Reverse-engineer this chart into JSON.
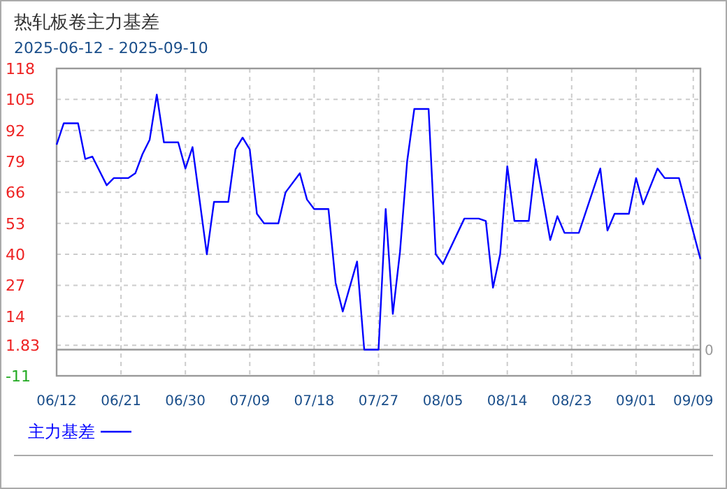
{
  "chart_data": {
    "type": "line",
    "title": "热轧板卷主力基差",
    "subtitle": "2025-06-12 - 2025-09-10",
    "x": [
      "2025-06-12",
      "2025-06-13",
      "2025-06-15",
      "2025-06-16",
      "2025-06-17",
      "2025-06-19",
      "2025-06-20",
      "2025-06-22",
      "2025-06-23",
      "2025-06-24",
      "2025-06-25",
      "2025-06-26",
      "2025-06-27",
      "2025-06-29",
      "2025-06-30",
      "2025-07-01",
      "2025-07-03",
      "2025-07-04",
      "2025-07-06",
      "2025-07-07",
      "2025-07-08",
      "2025-07-09",
      "2025-07-10",
      "2025-07-11",
      "2025-07-13",
      "2025-07-14",
      "2025-07-16",
      "2025-07-17",
      "2025-07-18",
      "2025-07-20",
      "2025-07-21",
      "2025-07-22",
      "2025-07-24",
      "2025-07-25",
      "2025-07-27",
      "2025-07-28",
      "2025-07-29",
      "2025-07-30",
      "2025-07-31",
      "2025-08-01",
      "2025-08-03",
      "2025-08-04",
      "2025-08-05",
      "2025-08-08",
      "2025-08-10",
      "2025-08-11",
      "2025-08-12",
      "2025-08-13",
      "2025-08-14",
      "2025-08-15",
      "2025-08-17",
      "2025-08-18",
      "2025-08-20",
      "2025-08-21",
      "2025-08-22",
      "2025-08-24",
      "2025-08-27",
      "2025-08-28",
      "2025-08-29",
      "2025-08-31",
      "2025-09-01",
      "2025-09-02",
      "2025-09-04",
      "2025-09-05",
      "2025-09-07",
      "2025-09-10"
    ],
    "series": [
      {
        "name": "主力基差",
        "color": "#0000ff",
        "values": [
          86,
          95,
          95,
          80,
          81,
          69,
          72,
          72,
          74,
          82,
          88,
          107,
          87,
          87,
          76,
          85,
          40,
          62,
          62,
          84,
          89,
          84,
          57,
          53,
          53,
          66,
          74,
          63,
          59,
          59,
          28,
          16,
          37,
          0,
          0,
          59,
          15,
          41,
          79,
          101,
          101,
          40,
          36,
          55,
          55,
          54,
          26,
          40,
          77,
          54,
          54,
          80,
          46,
          56,
          49,
          49,
          76,
          50,
          57,
          57,
          72,
          61,
          76,
          72,
          72,
          38
        ]
      }
    ],
    "xlim": [
      "2025-06-12",
      "2025-09-10"
    ],
    "xticks": [
      {
        "value": "2025-06-12",
        "label": "06/12"
      },
      {
        "value": "2025-06-21",
        "label": "06/21"
      },
      {
        "value": "2025-06-30",
        "label": "06/30"
      },
      {
        "value": "2025-07-09",
        "label": "07/09"
      },
      {
        "value": "2025-07-18",
        "label": "07/18"
      },
      {
        "value": "2025-07-27",
        "label": "07/27"
      },
      {
        "value": "2025-08-05",
        "label": "08/05"
      },
      {
        "value": "2025-08-14",
        "label": "08/14"
      },
      {
        "value": "2025-08-23",
        "label": "08/23"
      },
      {
        "value": "2025-09-01",
        "label": "09/01"
      },
      {
        "value": "2025-09-09",
        "label": "09/09"
      }
    ],
    "ylim": [
      -11,
      118
    ],
    "yticks": [
      -11,
      1.83,
      14,
      27,
      40,
      53,
      66,
      79,
      92,
      105,
      118
    ],
    "ref_lines": [
      {
        "axis": "y",
        "value": 0,
        "label": "0",
        "color": "#999999"
      }
    ],
    "grid": true,
    "legend": "bottom left",
    "line_style": "solid",
    "marker": "none"
  }
}
